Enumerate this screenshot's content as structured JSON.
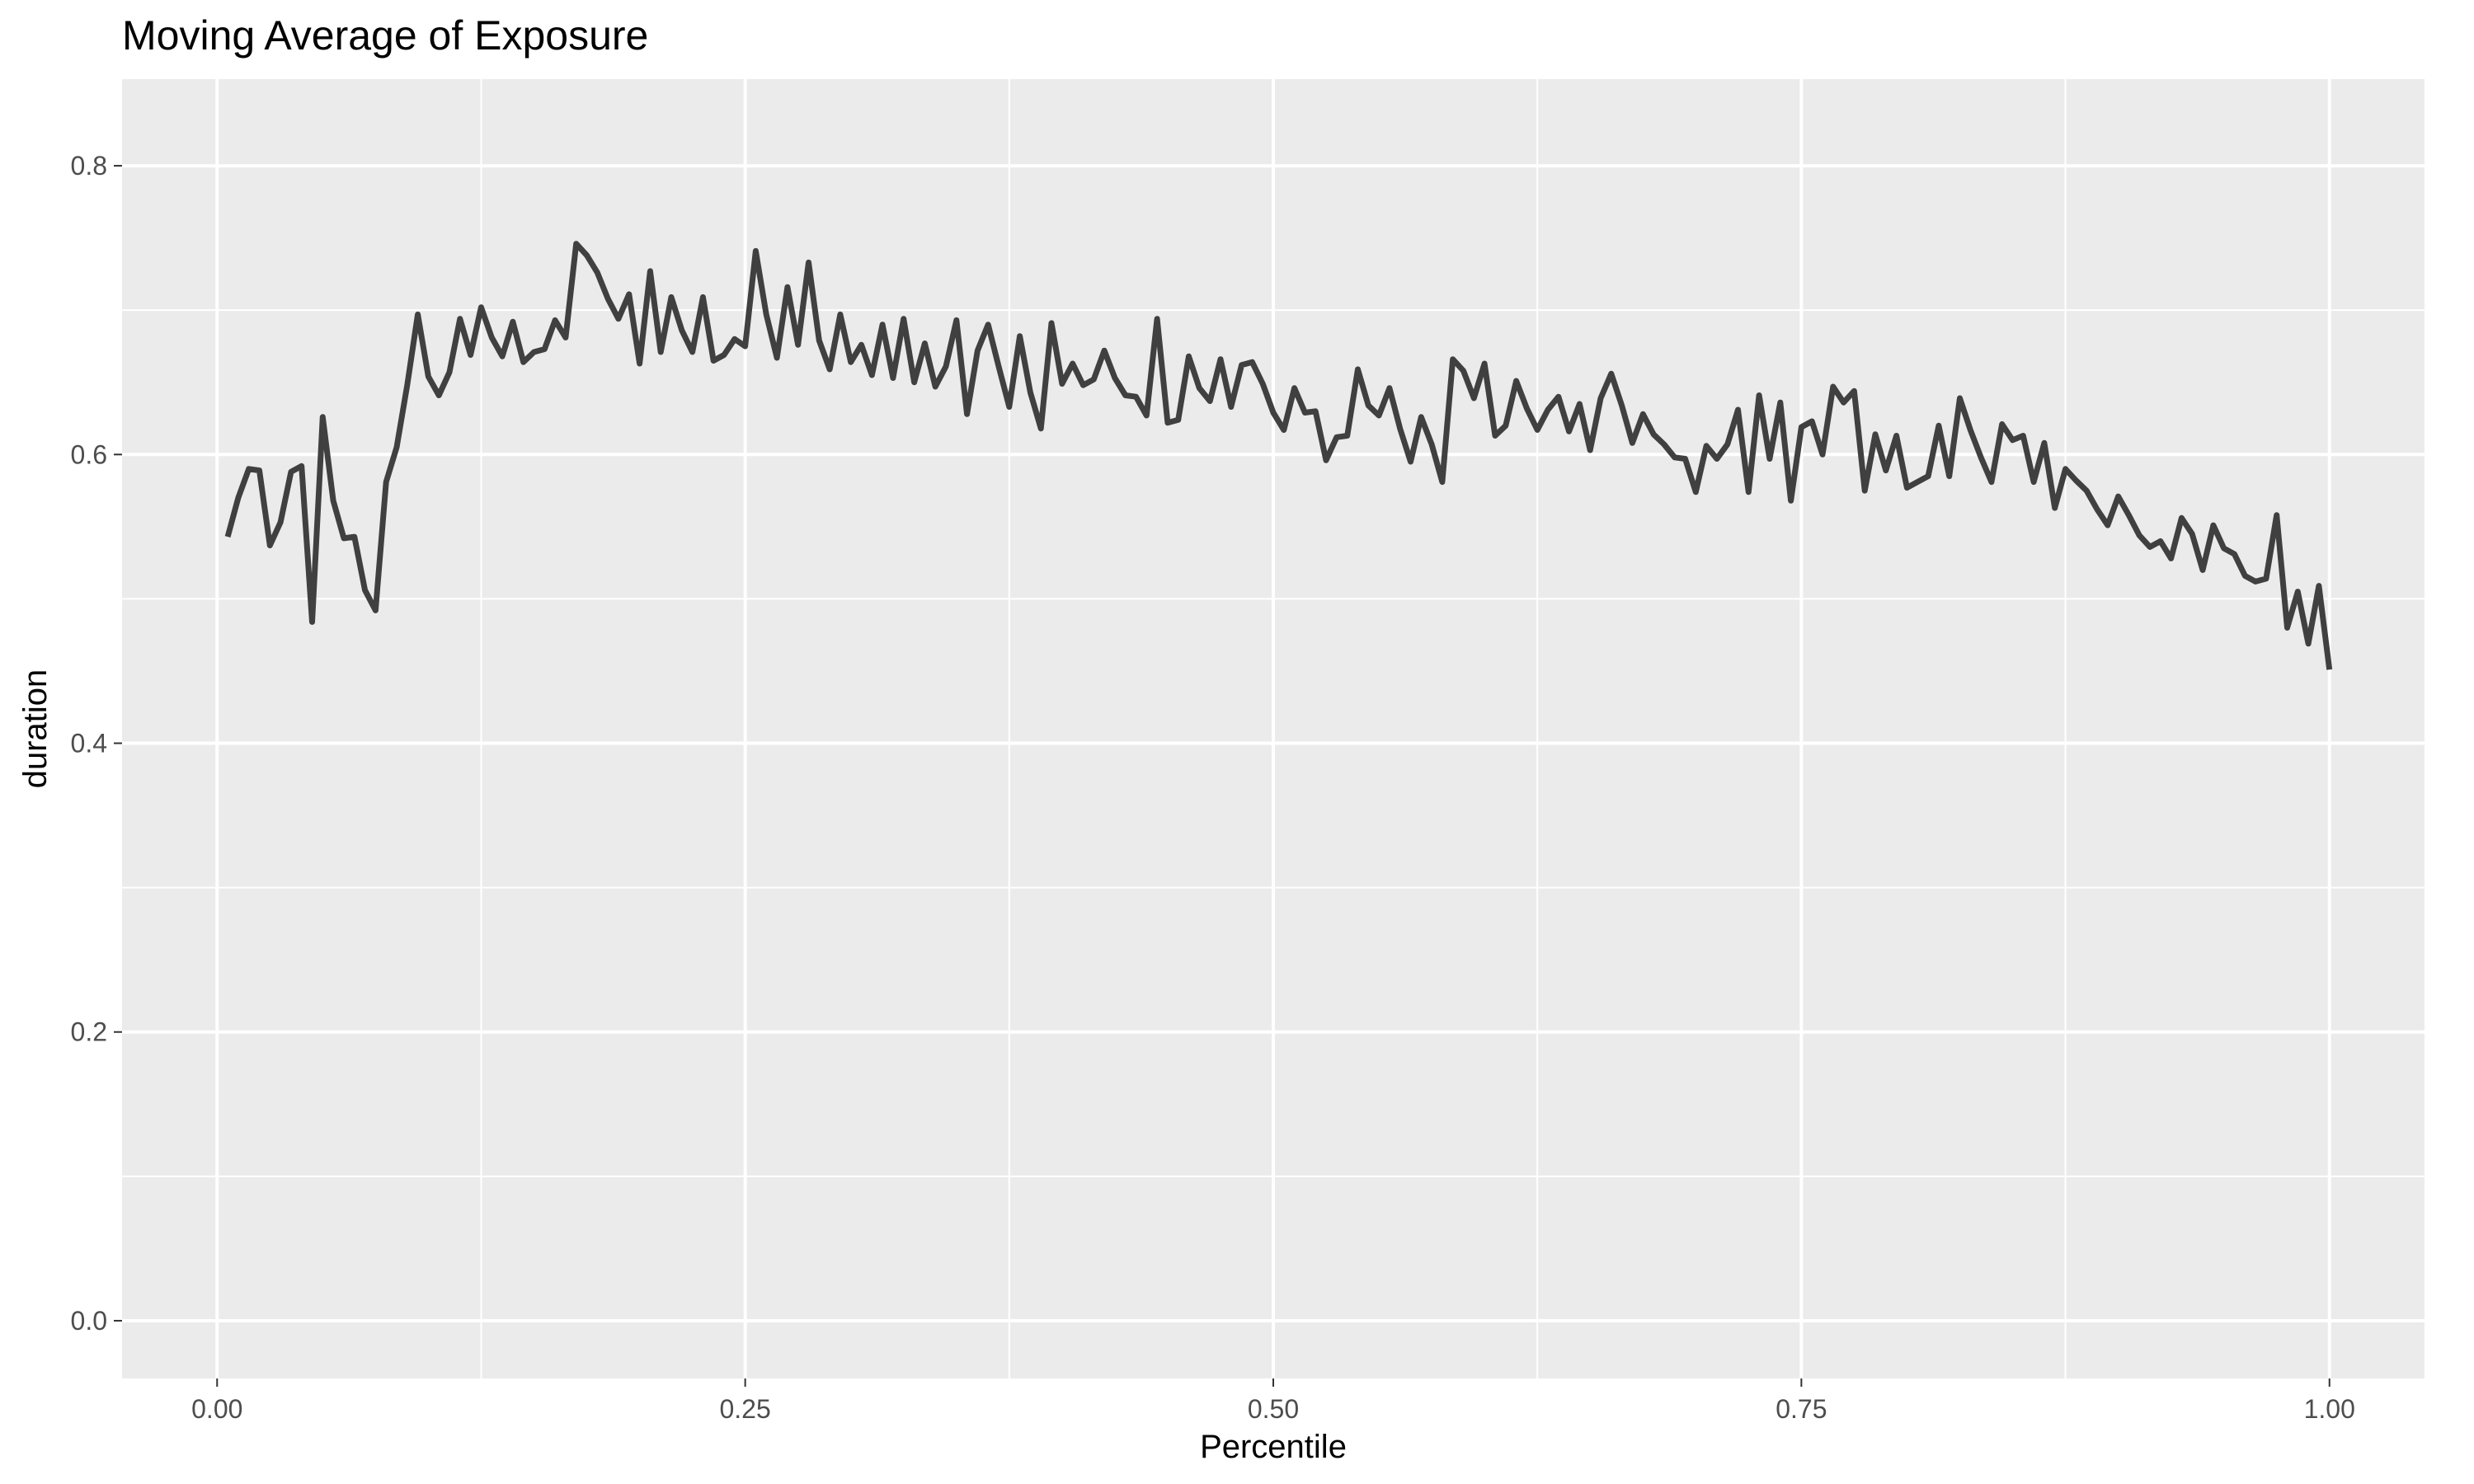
{
  "chart_data": {
    "type": "line",
    "title": "Moving Average of Exposure",
    "xlabel": "Percentile",
    "ylabel": "duration",
    "xlim": [
      -0.045,
      1.045
    ],
    "ylim": [
      -0.04,
      0.86
    ],
    "x_ticks": [
      0.0,
      0.25,
      0.5,
      0.75,
      1.0
    ],
    "x_tick_labels": [
      "0.00",
      "0.25",
      "0.50",
      "0.75",
      "1.00"
    ],
    "y_ticks": [
      0.0,
      0.2,
      0.4,
      0.6,
      0.8
    ],
    "y_tick_labels": [
      "0.0",
      "0.2",
      "0.4",
      "0.6",
      "0.8"
    ],
    "grid": true,
    "panel_background": "#ebebeb",
    "grid_color": "#ffffff",
    "line_color": "#404040",
    "series": [
      {
        "x": [
          0.005,
          0.01,
          0.015,
          0.02,
          0.025,
          0.03,
          0.035,
          0.04,
          0.045,
          0.05,
          0.055,
          0.06,
          0.065,
          0.07,
          0.075,
          0.08,
          0.085,
          0.09,
          0.095,
          0.1,
          0.105,
          0.11,
          0.115,
          0.12,
          0.125,
          0.13,
          0.135,
          0.14,
          0.145,
          0.15,
          0.155,
          0.16,
          0.165,
          0.17,
          0.175,
          0.18,
          0.185,
          0.19,
          0.195,
          0.2,
          0.205,
          0.21,
          0.215,
          0.22,
          0.225,
          0.23,
          0.235,
          0.24,
          0.245,
          0.25,
          0.255,
          0.26,
          0.265,
          0.27,
          0.275,
          0.28,
          0.285,
          0.29,
          0.295,
          0.3,
          0.305,
          0.31,
          0.315,
          0.32,
          0.325,
          0.33,
          0.335,
          0.34,
          0.345,
          0.35,
          0.355,
          0.36,
          0.365,
          0.37,
          0.375,
          0.38,
          0.385,
          0.39,
          0.395,
          0.4,
          0.405,
          0.41,
          0.415,
          0.42,
          0.425,
          0.43,
          0.435,
          0.44,
          0.445,
          0.45,
          0.455,
          0.46,
          0.465,
          0.47,
          0.475,
          0.48,
          0.485,
          0.49,
          0.495,
          0.5,
          0.505,
          0.51,
          0.515,
          0.52,
          0.525,
          0.53,
          0.535,
          0.54,
          0.545,
          0.55,
          0.555,
          0.56,
          0.565,
          0.57,
          0.575,
          0.58,
          0.585,
          0.59,
          0.595,
          0.6,
          0.605,
          0.61,
          0.615,
          0.62,
          0.625,
          0.63,
          0.635,
          0.64,
          0.645,
          0.65,
          0.655,
          0.66,
          0.665,
          0.67,
          0.675,
          0.68,
          0.685,
          0.69,
          0.695,
          0.7,
          0.705,
          0.71,
          0.715,
          0.72,
          0.725,
          0.73,
          0.735,
          0.74,
          0.745,
          0.75,
          0.755,
          0.76,
          0.765,
          0.77,
          0.775,
          0.78,
          0.785,
          0.79,
          0.795,
          0.8,
          0.805,
          0.81,
          0.815,
          0.82,
          0.825,
          0.83,
          0.835,
          0.84,
          0.845,
          0.85,
          0.855,
          0.86,
          0.865,
          0.87,
          0.875,
          0.88,
          0.885,
          0.89,
          0.895,
          0.9,
          0.905,
          0.91,
          0.915,
          0.92,
          0.925,
          0.93,
          0.935,
          0.94,
          0.945,
          0.95,
          0.955,
          0.96,
          0.965,
          0.97,
          0.975,
          0.98,
          0.985,
          0.99,
          0.995,
          1.0
        ],
        "y": [
          0.543,
          0.57,
          0.59,
          0.589,
          0.537,
          0.553,
          0.588,
          0.592,
          0.484,
          0.626,
          0.568,
          0.542,
          0.543,
          0.506,
          0.492,
          0.581,
          0.605,
          0.648,
          0.697,
          0.654,
          0.641,
          0.657,
          0.694,
          0.669,
          0.702,
          0.681,
          0.668,
          0.692,
          0.664,
          0.671,
          0.673,
          0.693,
          0.681,
          0.746,
          0.738,
          0.726,
          0.708,
          0.694,
          0.711,
          0.663,
          0.727,
          0.671,
          0.709,
          0.686,
          0.671,
          0.709,
          0.665,
          0.669,
          0.68,
          0.675,
          0.741,
          0.697,
          0.667,
          0.716,
          0.676,
          0.733,
          0.679,
          0.659,
          0.697,
          0.664,
          0.676,
          0.655,
          0.69,
          0.653,
          0.694,
          0.65,
          0.677,
          0.647,
          0.661,
          0.693,
          0.628,
          0.672,
          0.69,
          0.661,
          0.633,
          0.682,
          0.643,
          0.618,
          0.691,
          0.649,
          0.663,
          0.648,
          0.652,
          0.672,
          0.653,
          0.641,
          0.64,
          0.627,
          0.694,
          0.622,
          0.624,
          0.668,
          0.646,
          0.637,
          0.666,
          0.633,
          0.662,
          0.664,
          0.649,
          0.629,
          0.617,
          0.646,
          0.629,
          0.63,
          0.596,
          0.612,
          0.613,
          0.659,
          0.634,
          0.627,
          0.646,
          0.618,
          0.595,
          0.626,
          0.607,
          0.581,
          0.666,
          0.658,
          0.639,
          0.663,
          0.613,
          0.62,
          0.651,
          0.632,
          0.617,
          0.631,
          0.64,
          0.616,
          0.635,
          0.603,
          0.639,
          0.656,
          0.634,
          0.608,
          0.628,
          0.614,
          0.607,
          0.598,
          0.597,
          0.574,
          0.606,
          0.597,
          0.607,
          0.631,
          0.574,
          0.641,
          0.597,
          0.636,
          0.568,
          0.619,
          0.623,
          0.6,
          0.647,
          0.636,
          0.644,
          0.575,
          0.614,
          0.589,
          0.613,
          0.577,
          0.581,
          0.585,
          0.62,
          0.585,
          0.639,
          0.617,
          0.598,
          0.581,
          0.621,
          0.61,
          0.613,
          0.581,
          0.608,
          0.563,
          0.59,
          0.582,
          0.575,
          0.562,
          0.551,
          0.571,
          0.558,
          0.544,
          0.536,
          0.54,
          0.528,
          0.556,
          0.545,
          0.52,
          0.551,
          0.535,
          0.531,
          0.516,
          0.512,
          0.514,
          0.558,
          0.48,
          0.505,
          0.469,
          0.509,
          0.451
        ]
      }
    ]
  }
}
